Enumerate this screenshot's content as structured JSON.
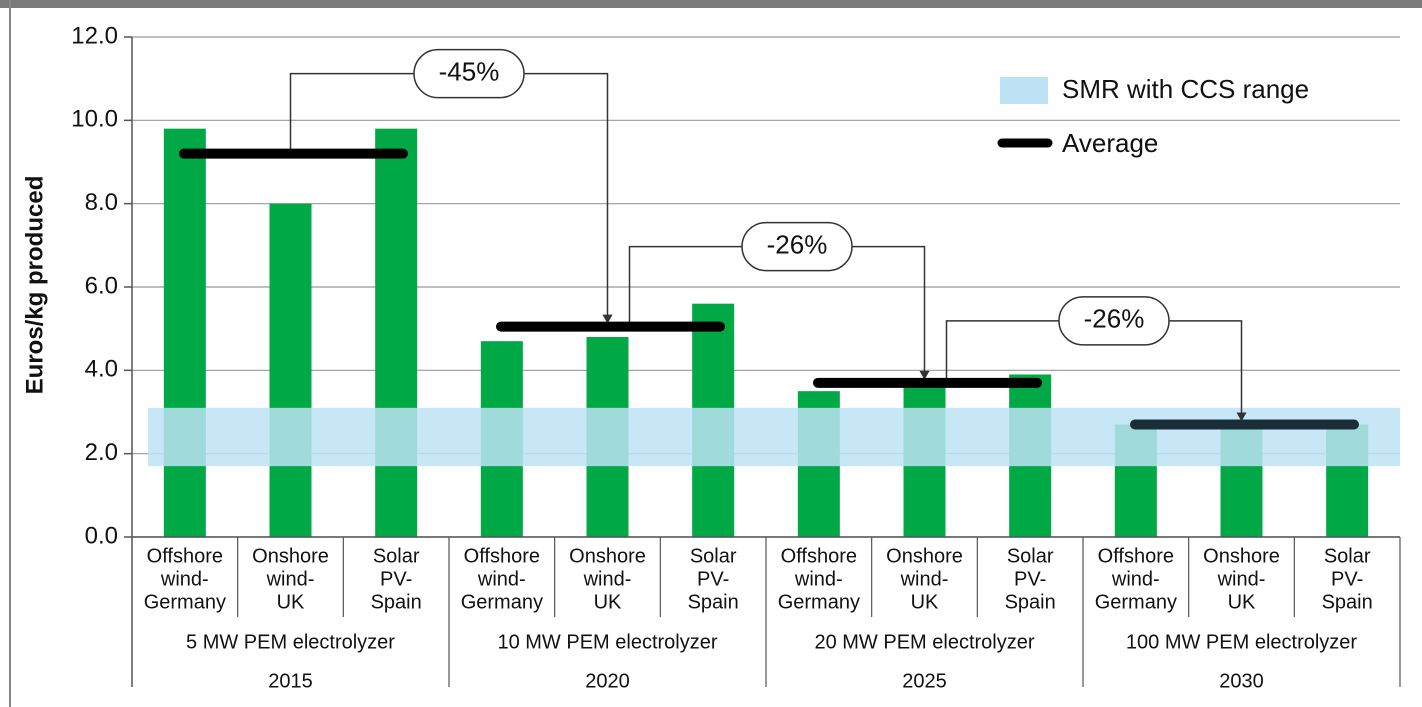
{
  "chart_data": {
    "type": "bar",
    "ylabel": "Euros/kg produced",
    "categories": [
      [
        "Offshore",
        "wind-",
        "Germany"
      ],
      [
        "Onshore",
        "wind-",
        "UK"
      ],
      [
        "Solar",
        "PV-",
        "Spain"
      ],
      [
        "Offshore",
        "wind-",
        "Germany"
      ],
      [
        "Onshore",
        "wind-",
        "UK"
      ],
      [
        "Solar",
        "PV-",
        "Spain"
      ],
      [
        "Offshore",
        "wind-",
        "Germany"
      ],
      [
        "Onshore",
        "wind-",
        "UK"
      ],
      [
        "Solar",
        "PV-",
        "Spain"
      ],
      [
        "Offshore",
        "wind-",
        "Germany"
      ],
      [
        "Onshore",
        "wind-",
        "UK"
      ],
      [
        "Solar",
        "PV-",
        "Spain"
      ]
    ],
    "values": [
      9.8,
      8.0,
      9.8,
      4.7,
      4.8,
      5.6,
      3.5,
      3.7,
      3.9,
      2.7,
      2.7,
      2.7
    ],
    "color": "#00a846",
    "groups": [
      {
        "label": "5 MW PEM electrolyzer",
        "year": "2015"
      },
      {
        "label": "10 MW PEM electrolyzer",
        "year": "2020"
      },
      {
        "label": "20 MW PEM electrolyzer",
        "year": "2025"
      },
      {
        "label": "100 MW PEM electrolyzer",
        "year": "2030"
      }
    ],
    "ylim": [
      0,
      12
    ],
    "yticks": [
      {
        "value": 0,
        "label": "0.0"
      },
      {
        "value": 2,
        "label": "2.0"
      },
      {
        "value": 4,
        "label": "4.0"
      },
      {
        "value": 6,
        "label": "6.0"
      },
      {
        "value": 8,
        "label": "8.0"
      },
      {
        "value": 10,
        "label": "10.0"
      },
      {
        "value": 12,
        "label": "12.0"
      }
    ],
    "grid": true,
    "range": {
      "name": "SMR with CCS range",
      "low": 1.7,
      "high": 3.1,
      "color": "#bde3f4"
    },
    "average": {
      "name": "Average",
      "values": [
        9.2,
        5.05,
        3.7,
        2.7
      ],
      "color": "#000000"
    },
    "annotations": [
      "-45%",
      "-26%",
      "-26%"
    ]
  }
}
